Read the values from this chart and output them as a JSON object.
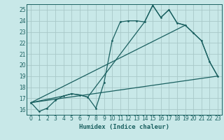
{
  "title": "",
  "xlabel": "Humidex (Indice chaleur)",
  "bg_color": "#c8e8e8",
  "grid_color": "#a8c8c8",
  "line_color": "#1a6060",
  "xlim": [
    -0.5,
    23.5
  ],
  "ylim": [
    15.5,
    25.5
  ],
  "xticks": [
    0,
    1,
    2,
    3,
    4,
    5,
    6,
    7,
    8,
    9,
    10,
    11,
    12,
    13,
    14,
    15,
    16,
    17,
    18,
    19,
    20,
    21,
    22,
    23
  ],
  "yticks": [
    16,
    17,
    18,
    19,
    20,
    21,
    22,
    23,
    24,
    25
  ],
  "line1_x": [
    0,
    1,
    2,
    3,
    4,
    5,
    6,
    7,
    8,
    9,
    10,
    11,
    12,
    13,
    14,
    15,
    16,
    17,
    18,
    19,
    20,
    21,
    22,
    23
  ],
  "line1_y": [
    16.6,
    15.8,
    16.1,
    16.8,
    17.2,
    17.4,
    17.3,
    17.1,
    16.1,
    18.4,
    22.2,
    23.9,
    24.0,
    24.0,
    23.9,
    25.4,
    24.3,
    25.0,
    23.8,
    23.6,
    22.9,
    22.2,
    20.3,
    19.0
  ],
  "line2_x": [
    0,
    4,
    5,
    6,
    7,
    14,
    15,
    16,
    17,
    18,
    19,
    20,
    21,
    22,
    23
  ],
  "line2_y": [
    16.6,
    17.2,
    17.4,
    17.3,
    17.1,
    23.9,
    25.4,
    24.3,
    25.0,
    23.8,
    23.6,
    22.9,
    22.2,
    20.3,
    19.0
  ],
  "line3_x": [
    0,
    23
  ],
  "line3_y": [
    16.6,
    19.0
  ],
  "line4_x": [
    0,
    19
  ],
  "line4_y": [
    16.6,
    23.6
  ]
}
